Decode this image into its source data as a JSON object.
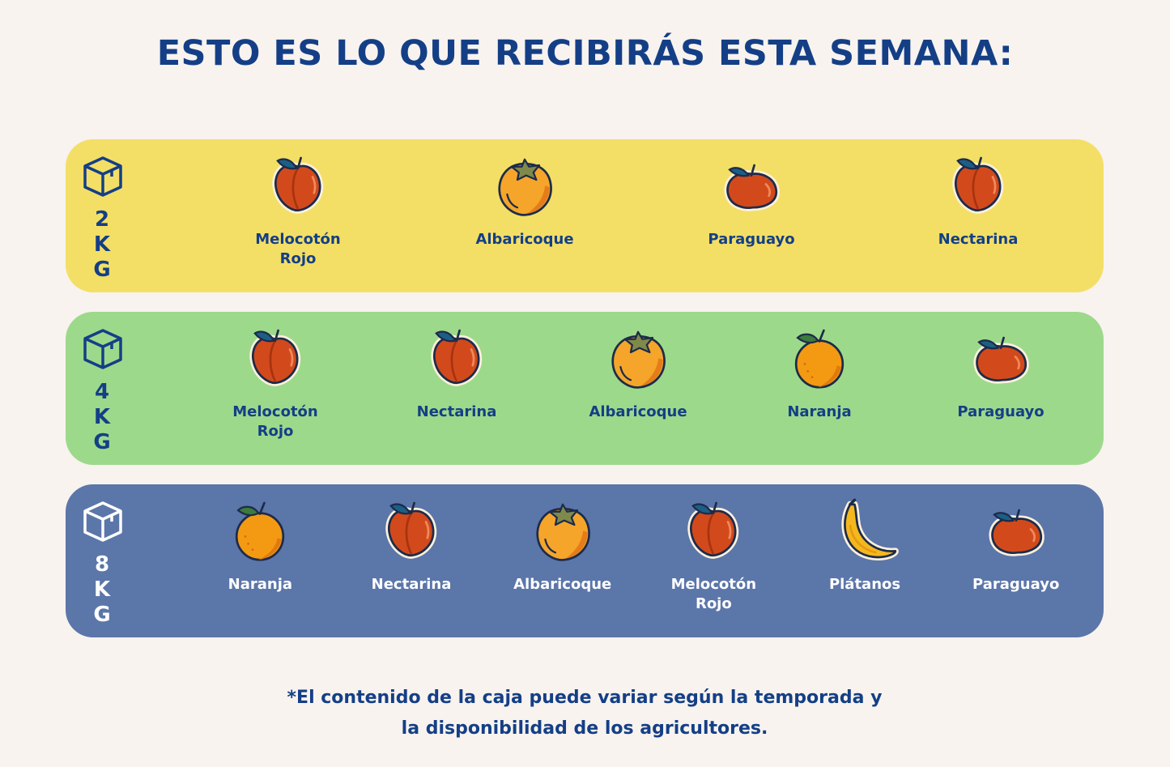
{
  "header": {
    "title": "ESTO ES LO QUE RECIBIRÁS ESTA SEMANA:"
  },
  "boxes": [
    {
      "size": "2KG",
      "items": [
        "Melocotón Rojo",
        "Albaricoque",
        "Paraguayo",
        "Nectarina"
      ]
    },
    {
      "size": "4KG",
      "items": [
        "Melocotón Rojo",
        "Nectarina",
        "Albaricoque",
        "Naranja",
        "Paraguayo"
      ]
    },
    {
      "size": "8KG",
      "items": [
        "Naranja",
        "Nectarina",
        "Albaricoque",
        "Melocotón Rojo",
        "Plátanos",
        "Paraguayo"
      ]
    }
  ],
  "footnote": "*El contenido de la caja puede variar según la temporada y la disponibilidad de los agricultores."
}
